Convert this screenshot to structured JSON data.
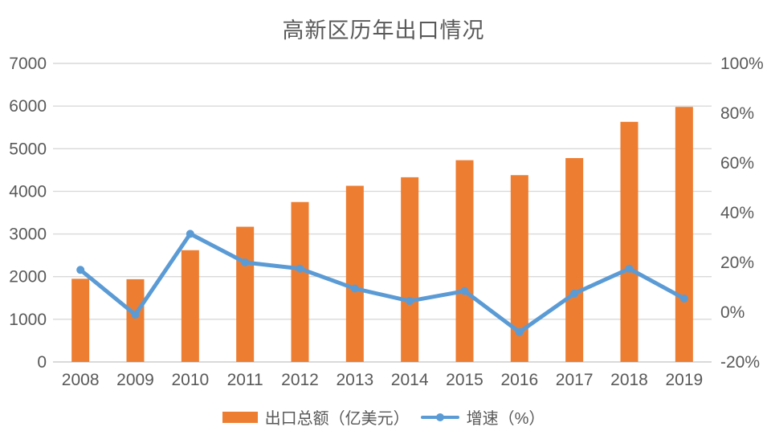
{
  "page": {
    "background": "#FFFFFF"
  },
  "chart_data": {
    "type": "combo",
    "title": "高新区历年出口情况",
    "categories": [
      "2008",
      "2009",
      "2010",
      "2011",
      "2012",
      "2013",
      "2014",
      "2015",
      "2016",
      "2017",
      "2018",
      "2019"
    ],
    "series": [
      {
        "name": "出口总额（亿美元）",
        "type": "bar",
        "axis": "left",
        "color": "#ED7D31",
        "values": [
          1950,
          1940,
          2620,
          3170,
          3750,
          4130,
          4330,
          4730,
          4380,
          4780,
          5630,
          5980
        ]
      },
      {
        "name": "增速（%）",
        "type": "line",
        "axis": "right",
        "color": "#5B9BD5",
        "values": [
          17,
          -1,
          31.5,
          20,
          17.5,
          9.5,
          4.5,
          8.5,
          -8,
          7.5,
          17.5,
          5.5
        ]
      }
    ],
    "left_axis": {
      "min": 0,
      "max": 7000,
      "step": 1000,
      "tick_labels": [
        "0",
        "1000",
        "2000",
        "3000",
        "4000",
        "5000",
        "6000",
        "7000"
      ]
    },
    "right_axis": {
      "min": -20,
      "max": 100,
      "step": 20,
      "tick_labels": [
        "-20%",
        "0%",
        "20%",
        "40%",
        "60%",
        "80%",
        "100%"
      ]
    },
    "grid": true,
    "gridline_color": "#D9D9D9",
    "axis_line_color": "#D9D9D9",
    "text_color": "#595959",
    "legend_position": "bottom"
  }
}
